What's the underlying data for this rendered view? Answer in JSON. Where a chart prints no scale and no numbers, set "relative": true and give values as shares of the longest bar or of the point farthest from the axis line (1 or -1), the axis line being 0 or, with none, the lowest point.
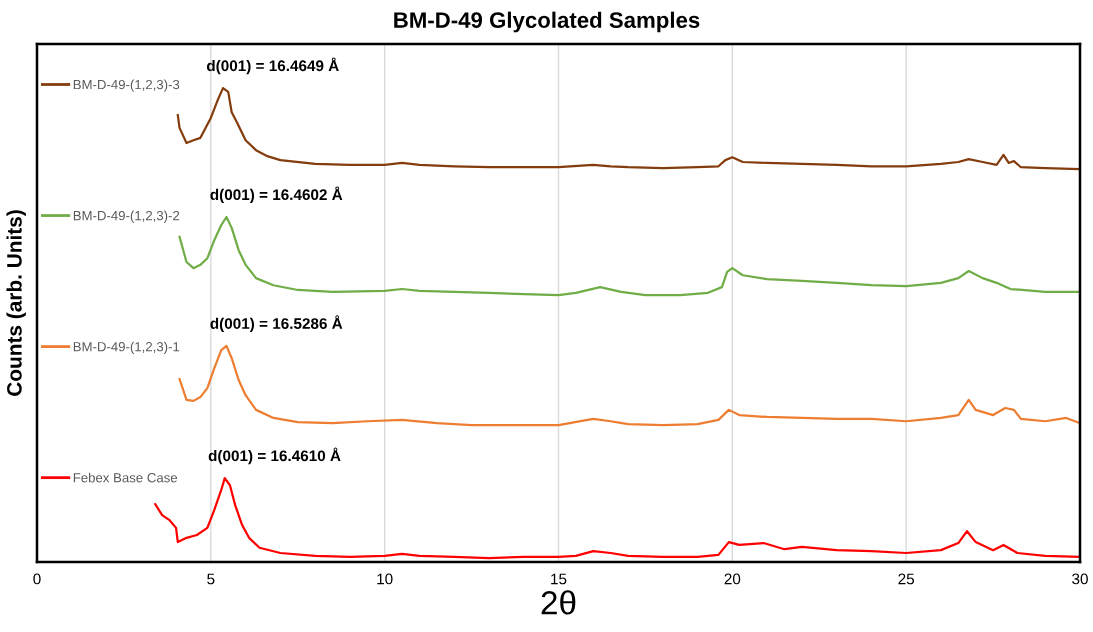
{
  "chart_data": {
    "type": "line",
    "title": "BM-D-49 Glycolated Samples",
    "xlabel": "2θ",
    "ylabel": "Counts (arb. Units)",
    "relative": true,
    "xlim": [
      0,
      30
    ],
    "xticks": [
      0,
      5,
      10,
      15,
      20,
      25,
      30
    ],
    "grid": "x",
    "legend": "left",
    "tick_labels": "x",
    "series": [
      {
        "name": "BM-D-49-(1,2,3)-3",
        "color": "#843c0c",
        "x": [
          4.05,
          4.1,
          4.3,
          4.5,
          4.7,
          5.0,
          5.2,
          5.35,
          5.5,
          5.6,
          5.75,
          6.0,
          6.3,
          6.6,
          7,
          8,
          9,
          10,
          10.5,
          11,
          12,
          13,
          14,
          15,
          16,
          16.5,
          17,
          18,
          19,
          19.6,
          19.8,
          20,
          20.3,
          21,
          22,
          23,
          24,
          25,
          26,
          26.5,
          26.8,
          27.2,
          27.6,
          27.8,
          27.95,
          28.1,
          28.3,
          29,
          30
        ],
        "values": [
          0.943,
          0.916,
          0.884,
          0.89,
          0.895,
          0.937,
          0.975,
          1.0,
          0.992,
          0.949,
          0.928,
          0.89,
          0.869,
          0.857,
          0.848,
          0.84,
          0.838,
          0.838,
          0.842,
          0.838,
          0.835,
          0.833,
          0.833,
          0.833,
          0.838,
          0.835,
          0.833,
          0.831,
          0.833,
          0.835,
          0.848,
          0.854,
          0.844,
          0.842,
          0.84,
          0.838,
          0.835,
          0.835,
          0.84,
          0.844,
          0.85,
          0.844,
          0.838,
          0.859,
          0.842,
          0.846,
          0.833,
          0.831,
          0.829
        ]
      },
      {
        "name": "BM-D-49-(1,2,3)-2",
        "color": "#70ad47",
        "x": [
          4.1,
          4.3,
          4.5,
          4.7,
          4.9,
          5.1,
          5.3,
          5.45,
          5.6,
          5.8,
          6.0,
          6.3,
          6.8,
          7.5,
          8.5,
          10,
          10.5,
          11,
          12,
          13,
          14,
          15,
          15.5,
          16.2,
          16.8,
          17.5,
          18.5,
          19.3,
          19.7,
          19.85,
          20,
          20.3,
          21,
          22,
          23,
          24,
          25,
          26,
          26.5,
          26.8,
          27.2,
          27.6,
          28,
          29,
          30
        ],
        "values": [
          0.686,
          0.633,
          0.62,
          0.627,
          0.641,
          0.679,
          0.711,
          0.728,
          0.705,
          0.658,
          0.627,
          0.599,
          0.584,
          0.574,
          0.57,
          0.572,
          0.576,
          0.572,
          0.57,
          0.568,
          0.565,
          0.563,
          0.568,
          0.58,
          0.57,
          0.563,
          0.563,
          0.568,
          0.58,
          0.612,
          0.62,
          0.605,
          0.597,
          0.593,
          0.589,
          0.584,
          0.582,
          0.589,
          0.599,
          0.614,
          0.599,
          0.589,
          0.576,
          0.57,
          0.57
        ]
      },
      {
        "name": "BM-D-49-(1,2,3)-1",
        "color": "#ed7d31",
        "x": [
          4.1,
          4.3,
          4.5,
          4.7,
          4.9,
          5.1,
          5.3,
          5.45,
          5.6,
          5.8,
          6.0,
          6.3,
          6.8,
          7.5,
          8.5,
          9.5,
          10.5,
          11.5,
          12.5,
          14,
          15,
          16,
          16.5,
          17,
          18,
          19,
          19.6,
          19.9,
          20.2,
          21,
          22,
          23,
          24,
          25,
          26,
          26.5,
          26.8,
          27,
          27.5,
          27.85,
          28.1,
          28.3,
          29,
          29.6,
          30
        ],
        "values": [
          0.386,
          0.342,
          0.34,
          0.348,
          0.367,
          0.409,
          0.447,
          0.456,
          0.43,
          0.384,
          0.352,
          0.321,
          0.304,
          0.295,
          0.293,
          0.297,
          0.3,
          0.293,
          0.289,
          0.289,
          0.289,
          0.302,
          0.297,
          0.291,
          0.289,
          0.291,
          0.3,
          0.321,
          0.31,
          0.306,
          0.304,
          0.302,
          0.302,
          0.297,
          0.304,
          0.31,
          0.342,
          0.321,
          0.31,
          0.325,
          0.321,
          0.302,
          0.297,
          0.304,
          0.293
        ]
      },
      {
        "name": "Febex Base Case",
        "color": "#ff0000",
        "x": [
          3.4,
          3.6,
          3.8,
          4.0,
          4.05,
          4.3,
          4.6,
          4.9,
          5.1,
          5.3,
          5.4,
          5.55,
          5.7,
          5.9,
          6.1,
          6.4,
          7,
          8,
          9,
          10,
          10.5,
          11,
          12,
          13,
          14,
          15,
          15.5,
          16,
          16.5,
          17,
          18,
          19,
          19.6,
          19.9,
          20.2,
          20.9,
          21.5,
          22,
          23,
          24,
          25,
          26,
          26.5,
          26.75,
          27,
          27.5,
          27.8,
          28.2,
          29,
          30
        ],
        "values": [
          0.122,
          0.099,
          0.089,
          0.072,
          0.042,
          0.051,
          0.057,
          0.072,
          0.11,
          0.152,
          0.177,
          0.162,
          0.12,
          0.078,
          0.051,
          0.03,
          0.019,
          0.013,
          0.011,
          0.013,
          0.017,
          0.013,
          0.011,
          0.008,
          0.011,
          0.011,
          0.013,
          0.023,
          0.019,
          0.013,
          0.011,
          0.011,
          0.015,
          0.042,
          0.036,
          0.04,
          0.027,
          0.032,
          0.025,
          0.023,
          0.019,
          0.025,
          0.04,
          0.065,
          0.042,
          0.025,
          0.036,
          0.019,
          0.013,
          0.011
        ]
      }
    ],
    "annotations": [
      {
        "text": "d(001) = 16.4649 Å",
        "x": 5.35,
        "y": 1.0
      },
      {
        "text": "d(001) = 16.4602 Å",
        "x": 5.45,
        "y": 0.728
      },
      {
        "text": "d(001) = 16.5286 Å",
        "x": 5.45,
        "y": 0.456
      },
      {
        "text": "d(001) = 16.4610 Å",
        "x": 5.4,
        "y": 0.177
      }
    ]
  }
}
